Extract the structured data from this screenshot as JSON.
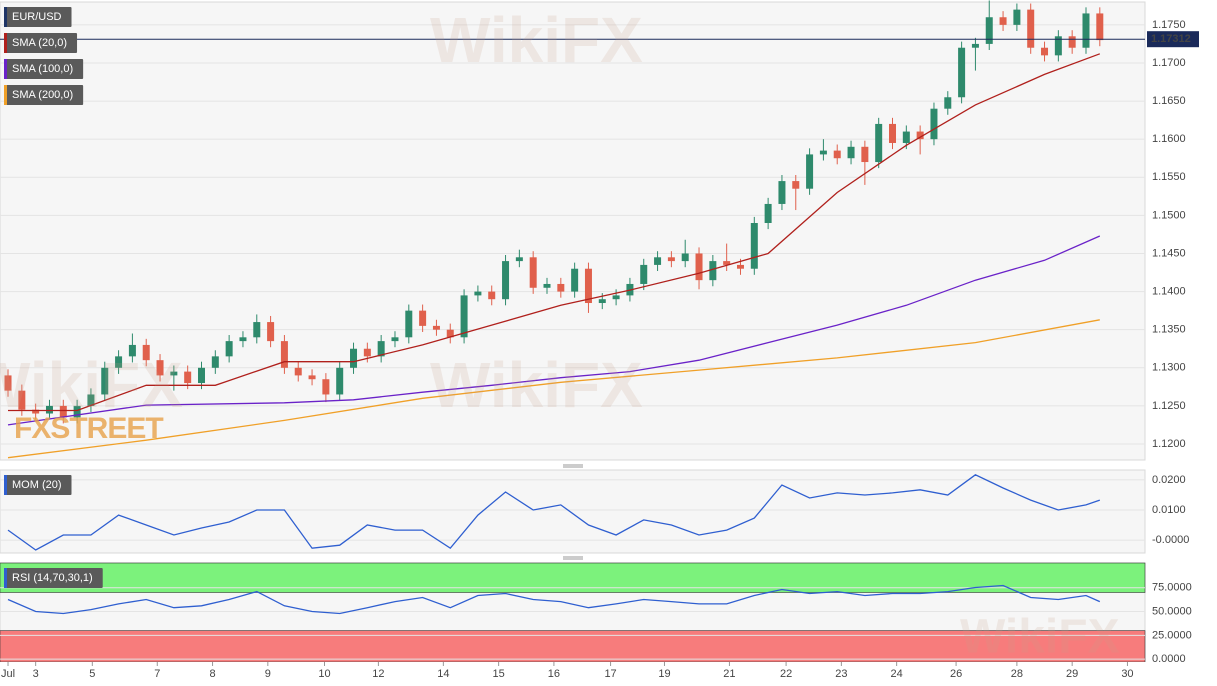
{
  "chart_data": [
    {
      "type": "candlestick",
      "name": "EUR/USD",
      "x": [
        0,
        1,
        2,
        3,
        4,
        5,
        6,
        7,
        8,
        9,
        10,
        11,
        12,
        13,
        14,
        15,
        16,
        17,
        18,
        19,
        20,
        21,
        22,
        23,
        24,
        25,
        26,
        27,
        28,
        29,
        30,
        31,
        32,
        33,
        34,
        35,
        36,
        37,
        38,
        39,
        40,
        41,
        42,
        43,
        44,
        45,
        46,
        47,
        48,
        49,
        50,
        51,
        52,
        53,
        54,
        55,
        56,
        57,
        58,
        59,
        60,
        61,
        62,
        63,
        64,
        65,
        66,
        67,
        68,
        69,
        70,
        71,
        72,
        73,
        74,
        75,
        76,
        77,
        78,
        79
      ],
      "open": [
        1.129,
        1.127,
        1.1245,
        1.124,
        1.125,
        1.1235,
        1.125,
        1.1265,
        1.13,
        1.1315,
        1.133,
        1.131,
        1.129,
        1.1295,
        1.128,
        1.13,
        1.1315,
        1.1335,
        1.134,
        1.136,
        1.1335,
        1.13,
        1.129,
        1.1285,
        1.1265,
        1.13,
        1.1325,
        1.1315,
        1.1335,
        1.134,
        1.1375,
        1.1355,
        1.135,
        1.134,
        1.1395,
        1.14,
        1.139,
        1.144,
        1.1445,
        1.1405,
        1.141,
        1.14,
        1.143,
        1.1385,
        1.139,
        1.1395,
        1.141,
        1.1435,
        1.1445,
        1.144,
        1.145,
        1.1415,
        1.144,
        1.1435,
        1.143,
        1.149,
        1.1515,
        1.1545,
        1.1535,
        1.158,
        1.1585,
        1.1575,
        1.159,
        1.157,
        1.162,
        1.1595,
        1.161,
        1.16,
        1.164,
        1.1655,
        1.172,
        1.1725,
        1.176,
        1.175,
        1.177,
        1.172,
        1.171,
        1.1735,
        1.172,
        1.1765
      ],
      "high": [
        1.1298,
        1.1278,
        1.1253,
        1.1258,
        1.1258,
        1.1258,
        1.1273,
        1.1308,
        1.1323,
        1.1345,
        1.1338,
        1.1318,
        1.1303,
        1.1303,
        1.1308,
        1.1323,
        1.1343,
        1.1348,
        1.137,
        1.1368,
        1.1343,
        1.1308,
        1.1298,
        1.1293,
        1.1308,
        1.1333,
        1.1333,
        1.1343,
        1.1348,
        1.1383,
        1.1383,
        1.1363,
        1.1358,
        1.1403,
        1.1408,
        1.1408,
        1.1448,
        1.1455,
        1.1453,
        1.1418,
        1.1418,
        1.1438,
        1.1438,
        1.1398,
        1.1403,
        1.1418,
        1.1443,
        1.1453,
        1.1453,
        1.1468,
        1.1458,
        1.1448,
        1.1463,
        1.1443,
        1.1498,
        1.1523,
        1.1553,
        1.1553,
        1.1588,
        1.16,
        1.1593,
        1.1598,
        1.1598,
        1.1628,
        1.1628,
        1.1618,
        1.1618,
        1.1648,
        1.1663,
        1.1728,
        1.1733,
        1.1782,
        1.1768,
        1.1778,
        1.1778,
        1.1728,
        1.1743,
        1.1743,
        1.1773,
        1.1773
      ],
      "low": [
        1.1262,
        1.1237,
        1.1232,
        1.1232,
        1.1227,
        1.1227,
        1.1242,
        1.1257,
        1.1292,
        1.1307,
        1.1302,
        1.1282,
        1.127,
        1.1272,
        1.1272,
        1.1292,
        1.1307,
        1.1327,
        1.1332,
        1.1327,
        1.1292,
        1.1282,
        1.1277,
        1.1255,
        1.1257,
        1.1292,
        1.1307,
        1.1307,
        1.1327,
        1.1332,
        1.1347,
        1.1342,
        1.1332,
        1.1332,
        1.1387,
        1.1382,
        1.1382,
        1.1432,
        1.1397,
        1.1397,
        1.1392,
        1.1392,
        1.1372,
        1.1377,
        1.1382,
        1.1387,
        1.1402,
        1.1427,
        1.1432,
        1.1432,
        1.1403,
        1.1407,
        1.1427,
        1.1422,
        1.1422,
        1.1482,
        1.1507,
        1.1507,
        1.1527,
        1.1572,
        1.1567,
        1.1567,
        1.154,
        1.1562,
        1.1587,
        1.1587,
        1.158,
        1.1592,
        1.1632,
        1.1647,
        1.169,
        1.1717,
        1.1742,
        1.1742,
        1.1712,
        1.1702,
        1.1702,
        1.1712,
        1.1712,
        1.1722
      ],
      "close": [
        1.127,
        1.1245,
        1.124,
        1.125,
        1.1235,
        1.125,
        1.1265,
        1.13,
        1.1315,
        1.133,
        1.131,
        1.129,
        1.1295,
        1.128,
        1.13,
        1.1315,
        1.1335,
        1.134,
        1.136,
        1.1335,
        1.13,
        1.129,
        1.1285,
        1.1265,
        1.13,
        1.1325,
        1.1315,
        1.1335,
        1.134,
        1.1375,
        1.1355,
        1.135,
        1.134,
        1.1395,
        1.14,
        1.139,
        1.144,
        1.1445,
        1.1405,
        1.141,
        1.14,
        1.143,
        1.1385,
        1.139,
        1.1395,
        1.141,
        1.1435,
        1.1445,
        1.144,
        1.145,
        1.1415,
        1.144,
        1.1435,
        1.143,
        1.149,
        1.1515,
        1.1545,
        1.1535,
        1.158,
        1.1585,
        1.1575,
        1.159,
        1.157,
        1.162,
        1.1595,
        1.161,
        1.16,
        1.164,
        1.1655,
        1.172,
        1.1725,
        1.176,
        1.175,
        1.177,
        1.172,
        1.171,
        1.1735,
        1.172,
        1.1765,
        1.173
      ],
      "up_color": "#2e8a6c",
      "down_color": "#e0604c",
      "series": [
        {
          "name": "SMA (20,0)",
          "color": "#b0201c",
          "x": [
            0,
            5,
            10,
            15,
            20,
            25,
            30,
            35,
            40,
            45,
            50,
            55,
            60,
            65,
            70,
            75,
            79
          ],
          "values": [
            1.1244,
            1.1244,
            1.1277,
            1.1277,
            1.1308,
            1.1308,
            1.133,
            1.1356,
            1.1382,
            1.1402,
            1.1424,
            1.145,
            1.153,
            1.1592,
            1.1645,
            1.1685,
            1.1712
          ]
        },
        {
          "name": "SMA (100,0)",
          "color": "#6a22c8",
          "x": [
            0,
            10,
            20,
            25,
            30,
            35,
            40,
            45,
            50,
            55,
            60,
            65,
            70,
            75,
            79
          ],
          "values": [
            1.1225,
            1.1251,
            1.1254,
            1.1258,
            1.1268,
            1.1277,
            1.1287,
            1.1295,
            1.131,
            1.1333,
            1.1356,
            1.1382,
            1.1415,
            1.1441,
            1.1473
          ]
        },
        {
          "name": "SMA (200,0)",
          "color": "#f0a028",
          "x": [
            0,
            10,
            20,
            30,
            40,
            50,
            60,
            70,
            79
          ],
          "values": [
            1.1182,
            1.1205,
            1.1231,
            1.126,
            1.1281,
            1.1297,
            1.1313,
            1.1333,
            1.1363
          ]
        }
      ],
      "last_price": 1.17312,
      "xlim": [
        -0.58,
        82.27
      ],
      "ylim": [
        1.1179,
        1.178
      ],
      "yticks": [
        {
          "value": 1.12,
          "label": "1.1200"
        },
        {
          "value": 1.125,
          "label": "1.1250"
        },
        {
          "value": 1.13,
          "label": "1.1300"
        },
        {
          "value": 1.135,
          "label": "1.1350"
        },
        {
          "value": 1.14,
          "label": "1.1400"
        },
        {
          "value": 1.145,
          "label": "1.1450"
        },
        {
          "value": 1.15,
          "label": "1.1500"
        },
        {
          "value": 1.155,
          "label": "1.1550"
        },
        {
          "value": 1.16,
          "label": "1.1600"
        },
        {
          "value": 1.165,
          "label": "1.1650"
        },
        {
          "value": 1.17,
          "label": "1.1700"
        },
        {
          "value": 1.175,
          "label": "1.1750"
        }
      ],
      "grid": true
    },
    {
      "type": "line",
      "series": [
        {
          "name": "MOM (20)",
          "color": "#2f5fd0",
          "x": [
            0,
            2,
            4,
            6,
            8,
            10,
            12,
            14,
            16,
            18,
            20,
            22,
            24,
            26,
            28,
            30,
            32,
            34,
            36,
            38,
            40,
            42,
            44,
            46,
            48,
            50,
            52,
            54,
            56,
            58,
            60,
            62,
            64,
            66,
            68,
            70,
            72,
            74,
            76,
            78,
            79
          ],
          "values": [
            0.0033,
            -0.0033,
            0.0017,
            0.0017,
            0.0083,
            0.005,
            0.0017,
            0.004,
            0.006,
            0.01,
            0.01,
            -0.0027,
            -0.0017,
            0.005,
            0.0033,
            0.0033,
            -0.0027,
            0.0083,
            0.016,
            0.01,
            0.0117,
            0.005,
            0.0017,
            0.0067,
            0.005,
            0.0017,
            0.0033,
            0.0073,
            0.0183,
            0.014,
            0.0157,
            0.015,
            0.0157,
            0.0167,
            0.015,
            0.0217,
            0.0173,
            0.0133,
            0.01,
            0.0117,
            0.0133
          ]
        }
      ],
      "xlim": [
        -0.58,
        82.27
      ],
      "ylim": [
        -0.0043,
        0.0233
      ],
      "yticks": [
        {
          "value": 0.02,
          "label": "0.0200"
        },
        {
          "value": 0.01,
          "label": "0.0100"
        },
        {
          "value": 0,
          "label": "-0.0000"
        }
      ],
      "grid": true
    },
    {
      "type": "line",
      "series": [
        {
          "name": "RSI (14,70,30,1)",
          "color": "#2f5fd0",
          "x": [
            0,
            2,
            4,
            6,
            8,
            10,
            12,
            14,
            16,
            18,
            20,
            22,
            24,
            26,
            28,
            30,
            32,
            34,
            36,
            38,
            40,
            42,
            44,
            46,
            48,
            50,
            52,
            54,
            56,
            58,
            60,
            62,
            64,
            66,
            68,
            70,
            72,
            74,
            76,
            78,
            79
          ],
          "values": [
            62.7,
            50,
            48,
            52,
            58,
            62.7,
            54,
            56,
            62.7,
            71,
            56,
            50,
            48,
            54,
            60.5,
            64.8,
            54,
            66.9,
            69,
            62.7,
            60.5,
            54,
            58,
            62.7,
            60.5,
            58,
            58,
            66.9,
            73.2,
            69,
            71,
            66.9,
            69,
            69,
            71,
            75.3,
            77.4,
            64.8,
            62.7,
            66.9,
            60.5
          ]
        }
      ],
      "upper_band": 70,
      "lower_band": 30,
      "upper_color": "#7cf27c",
      "lower_color": "#f77c7c",
      "xlim": [
        -0.58,
        82.27
      ],
      "ylim": [
        -3,
        101
      ],
      "yticks": [
        {
          "value": 75,
          "label": "75.0000"
        },
        {
          "value": 50,
          "label": "50.0000"
        },
        {
          "value": 25,
          "label": "25.0000"
        },
        {
          "value": 0,
          "label": "0.0000"
        }
      ],
      "xticks": [
        {
          "value": 0,
          "label": "Jul"
        },
        {
          "value": 2,
          "label": "3"
        },
        {
          "value": 6.1,
          "label": "5"
        },
        {
          "value": 10.8,
          "label": "7"
        },
        {
          "value": 14.8,
          "label": "8"
        },
        {
          "value": 18.8,
          "label": "9"
        },
        {
          "value": 22.9,
          "label": "10"
        },
        {
          "value": 26.8,
          "label": "12"
        },
        {
          "value": 31.5,
          "label": "14"
        },
        {
          "value": 35.5,
          "label": "15"
        },
        {
          "value": 39.5,
          "label": "16"
        },
        {
          "value": 43.6,
          "label": "17"
        },
        {
          "value": 47.5,
          "label": "19"
        },
        {
          "value": 52.2,
          "label": "21"
        },
        {
          "value": 56.3,
          "label": "22"
        },
        {
          "value": 60.3,
          "label": "23"
        },
        {
          "value": 64.3,
          "label": "24"
        },
        {
          "value": 68.6,
          "label": "26"
        },
        {
          "value": 73,
          "label": "28"
        },
        {
          "value": 77,
          "label": "29"
        },
        {
          "value": 81,
          "label": "30"
        }
      ],
      "grid": true
    }
  ],
  "watermarks": [
    "WikiFX",
    "FXSTREET"
  ]
}
